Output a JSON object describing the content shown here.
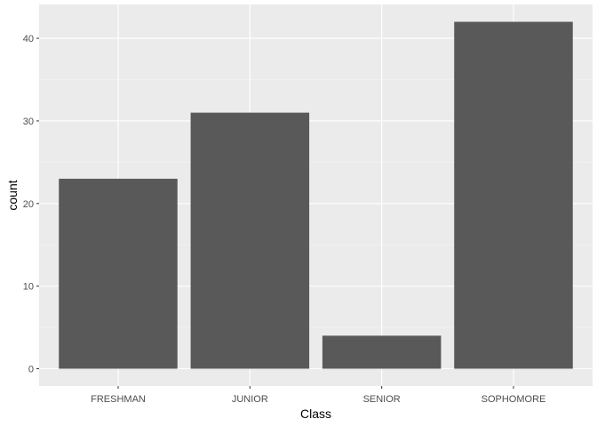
{
  "chart_data": {
    "type": "bar",
    "title": "",
    "xlabel": "Class",
    "ylabel": "count",
    "categories": [
      "FRESHMAN",
      "JUNIOR",
      "SENIOR",
      "SOPHOMORE"
    ],
    "values": [
      23,
      31,
      4,
      42
    ],
    "ylim": [
      -2.1,
      44.1
    ],
    "yticks": [
      0,
      10,
      20,
      30,
      40
    ],
    "grid": true,
    "legend": "none",
    "colors": {
      "bar": "#595959",
      "panel_background": "#ebebeb",
      "grid_major": "#ffffff",
      "grid_minor": "#f5f5f5",
      "tick_text": "#4d4d4d",
      "axis_title": "#000000"
    }
  }
}
